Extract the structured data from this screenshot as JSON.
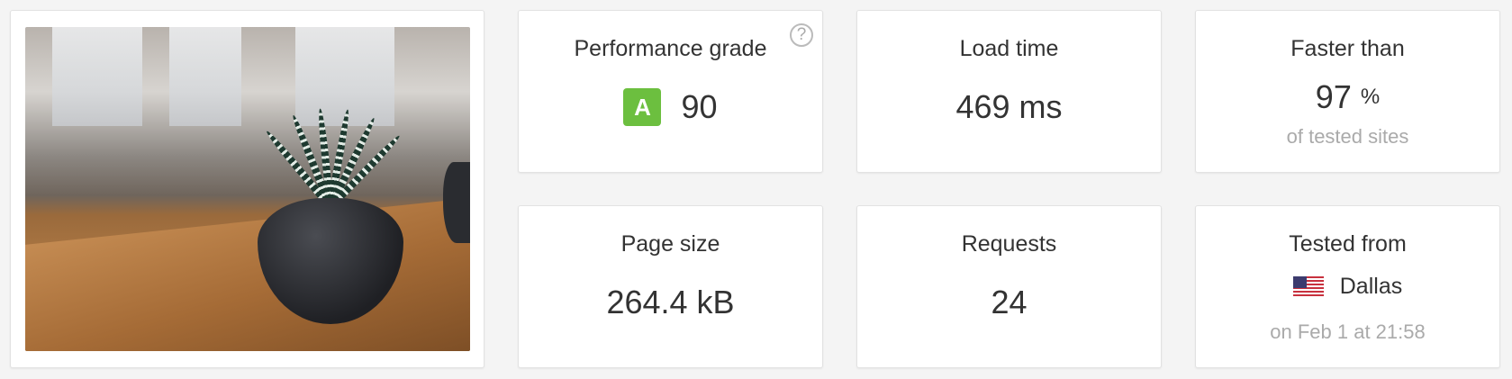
{
  "cards": {
    "performance": {
      "title": "Performance grade",
      "grade": "A",
      "grade_color": "#6cbf3f",
      "value": "90",
      "help": "?"
    },
    "load_time": {
      "title": "Load time",
      "value": "469 ms"
    },
    "faster_than": {
      "title": "Faster than",
      "value": "97",
      "unit": "%",
      "sub": "of tested sites"
    },
    "page_size": {
      "title": "Page size",
      "value": "264.4 kB"
    },
    "requests": {
      "title": "Requests",
      "value": "24"
    },
    "tested_from": {
      "title": "Tested from",
      "flag": "us-flag-icon",
      "location": "Dallas",
      "sub": "on Feb 1 at 21:58"
    }
  }
}
